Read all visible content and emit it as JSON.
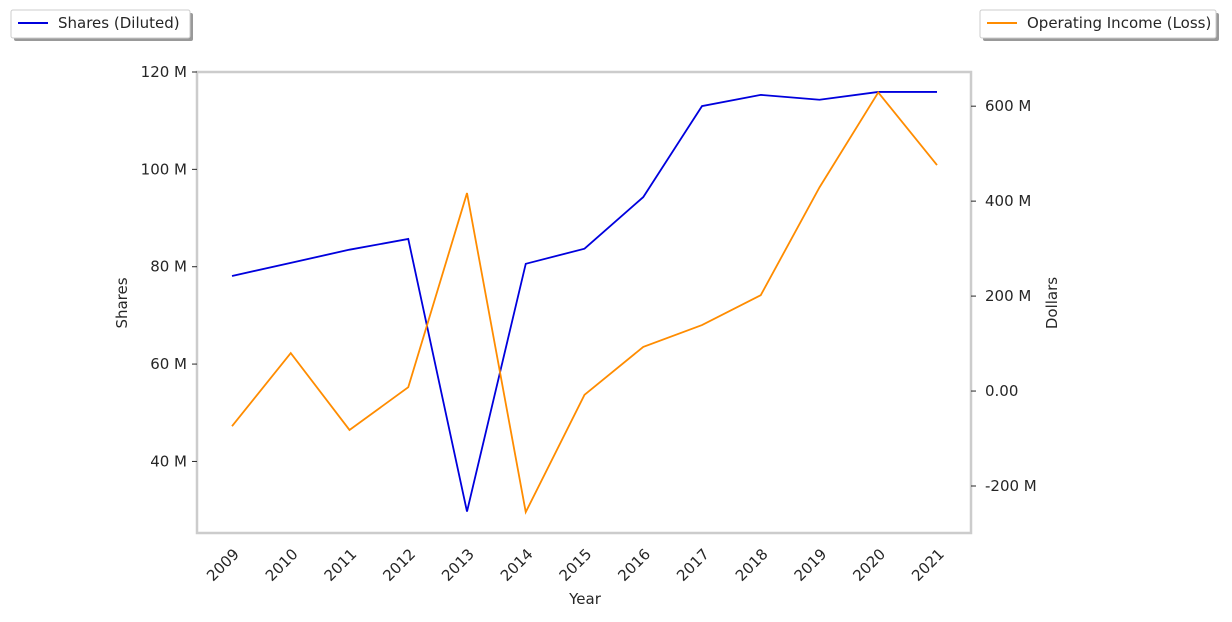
{
  "chart_data": {
    "type": "line",
    "x_label": "Year",
    "y_label": "Shares",
    "y2_label": "Dollars",
    "categories": [
      "2009",
      "2010",
      "2011",
      "2012",
      "2013",
      "2014",
      "2015",
      "2016",
      "2017",
      "2018",
      "2019",
      "2020",
      "2021"
    ],
    "series": [
      {
        "name": "Shares (Diluted)",
        "color": "#0000dd",
        "axis": "y",
        "values": [
          78100000,
          80800000,
          83500000,
          85700000,
          29700000,
          80600000,
          83700000,
          94300000,
          113000000,
          115300000,
          114300000,
          115900000,
          115900000
        ]
      },
      {
        "name": "Operating Income (Loss)",
        "color": "#ff8c00",
        "axis": "y2",
        "values": [
          -74000000,
          80000000,
          -82000000,
          8000000,
          417000000,
          -255000000,
          -8000000,
          93000000,
          139000000,
          202000000,
          429000000,
          629000000,
          476000000
        ]
      }
    ],
    "ylim": [
      25300000,
      120000000
    ],
    "yticks": [
      {
        "value": 40000000,
        "label": "40 M"
      },
      {
        "value": 60000000,
        "label": "60 M"
      },
      {
        "value": 80000000,
        "label": "80 M"
      },
      {
        "value": 100000000,
        "label": "100 M"
      },
      {
        "value": 120000000,
        "label": "120 M"
      }
    ],
    "y2lim": [
      -299000000,
      672000000
    ],
    "y2ticks": [
      {
        "value": -200000000,
        "label": "-200 M"
      },
      {
        "value": 0,
        "label": "0.00"
      },
      {
        "value": 200000000,
        "label": "200 M"
      },
      {
        "value": 400000000,
        "label": "400 M"
      },
      {
        "value": 600000000,
        "label": "600 M"
      }
    ],
    "grid": false
  }
}
